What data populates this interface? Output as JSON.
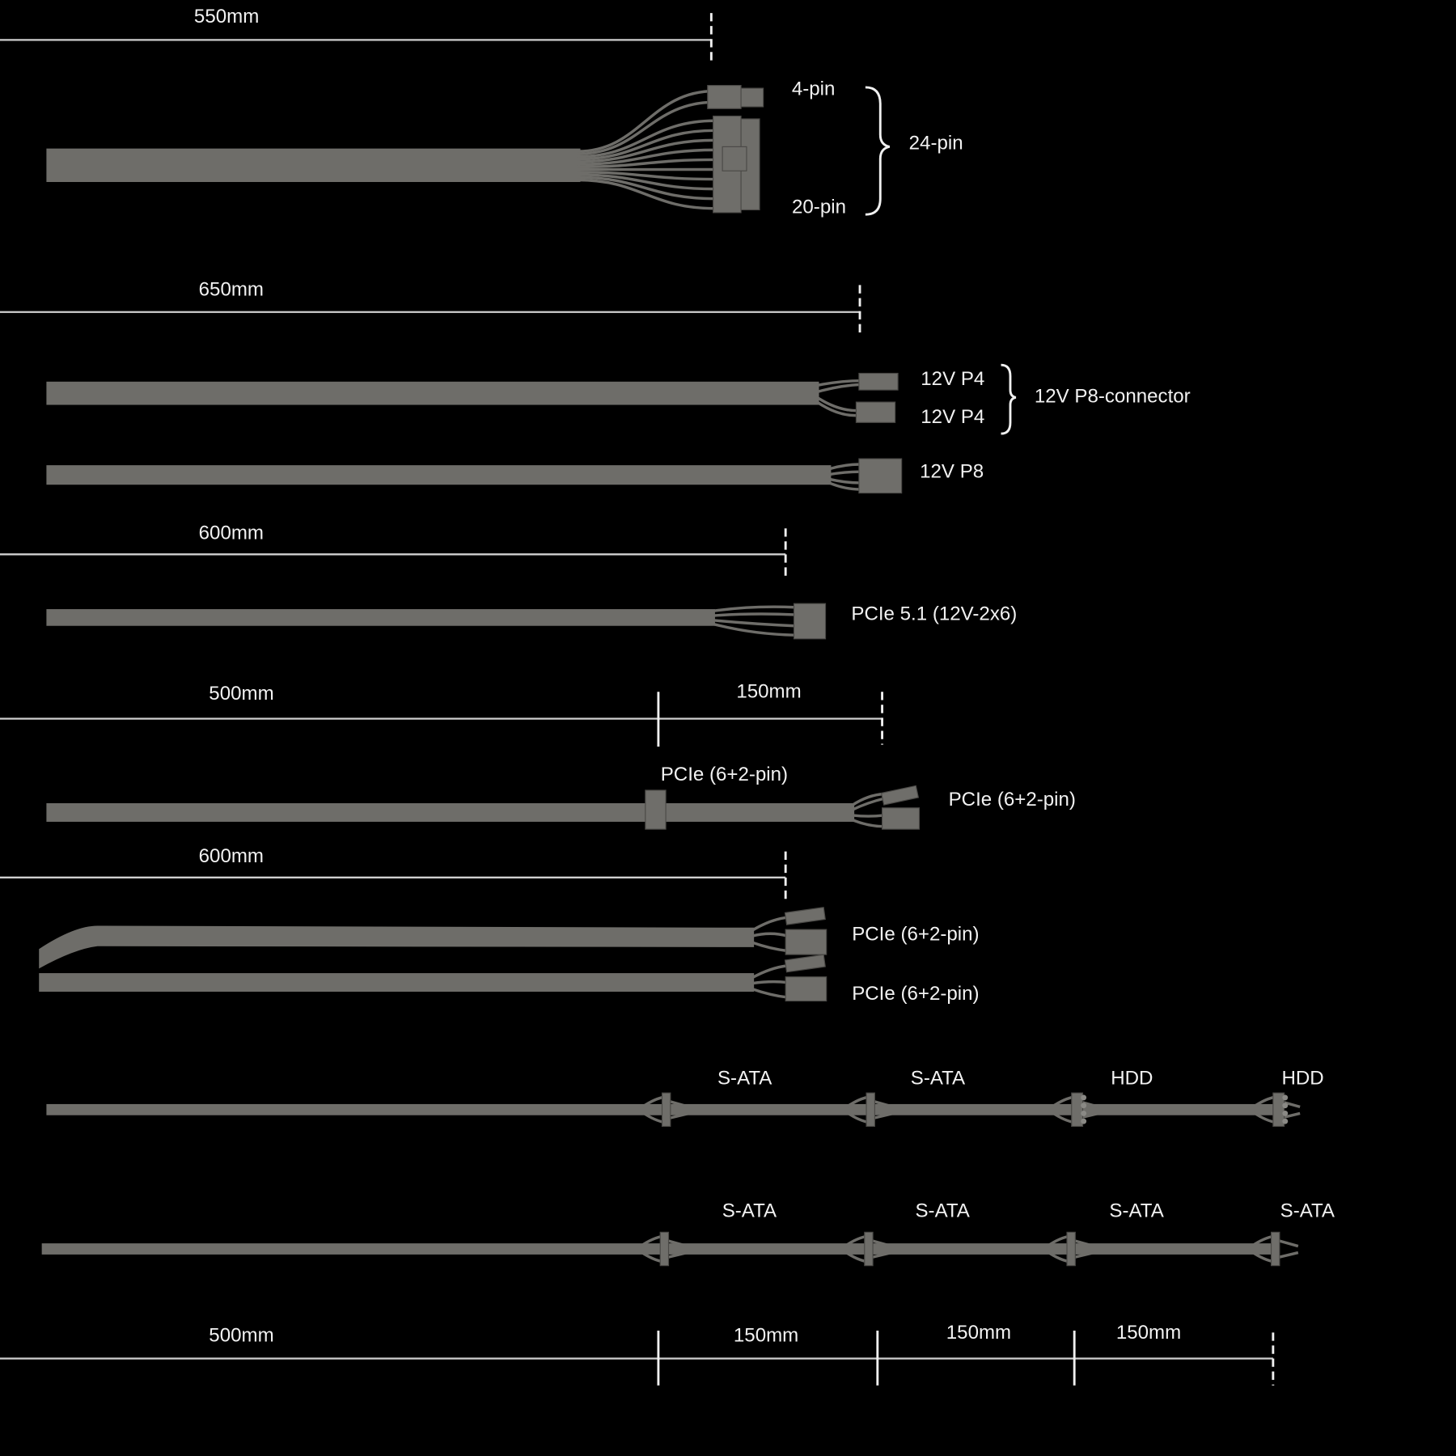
{
  "colors": {
    "background": "#000000",
    "cable": "#6e6d69",
    "text": "#f2f2f2",
    "measure_line": "#d0d0d0"
  },
  "measurements": {
    "atx": "550mm",
    "cpu": "650mm",
    "pcie51": "600mm",
    "pcie_daisy_main": "500mm",
    "pcie_daisy_ext": "150mm",
    "pcie_dual": "600mm",
    "sata_main": "500mm",
    "sata_seg1": "150mm",
    "sata_seg2": "150mm",
    "sata_seg3": "150mm"
  },
  "labels": {
    "pin4": "4-pin",
    "pin20": "20-pin",
    "pin24": "24-pin",
    "p4a": "12V P4",
    "p4b": "12V P4",
    "p8conn": "12V P8-connector",
    "p8": "12V P8",
    "pcie51": "PCIe 5.1 (12V-2x6)",
    "pcie_mid": "PCIe (6+2-pin)",
    "pcie_end": "PCIe (6+2-pin)",
    "pcie_a": "PCIe (6+2-pin)",
    "pcie_b": "PCIe (6+2-pin)",
    "sata1": [
      "S-ATA",
      "S-ATA",
      "HDD",
      "HDD"
    ],
    "sata2": [
      "S-ATA",
      "S-ATA",
      "S-ATA",
      "S-ATA"
    ]
  }
}
